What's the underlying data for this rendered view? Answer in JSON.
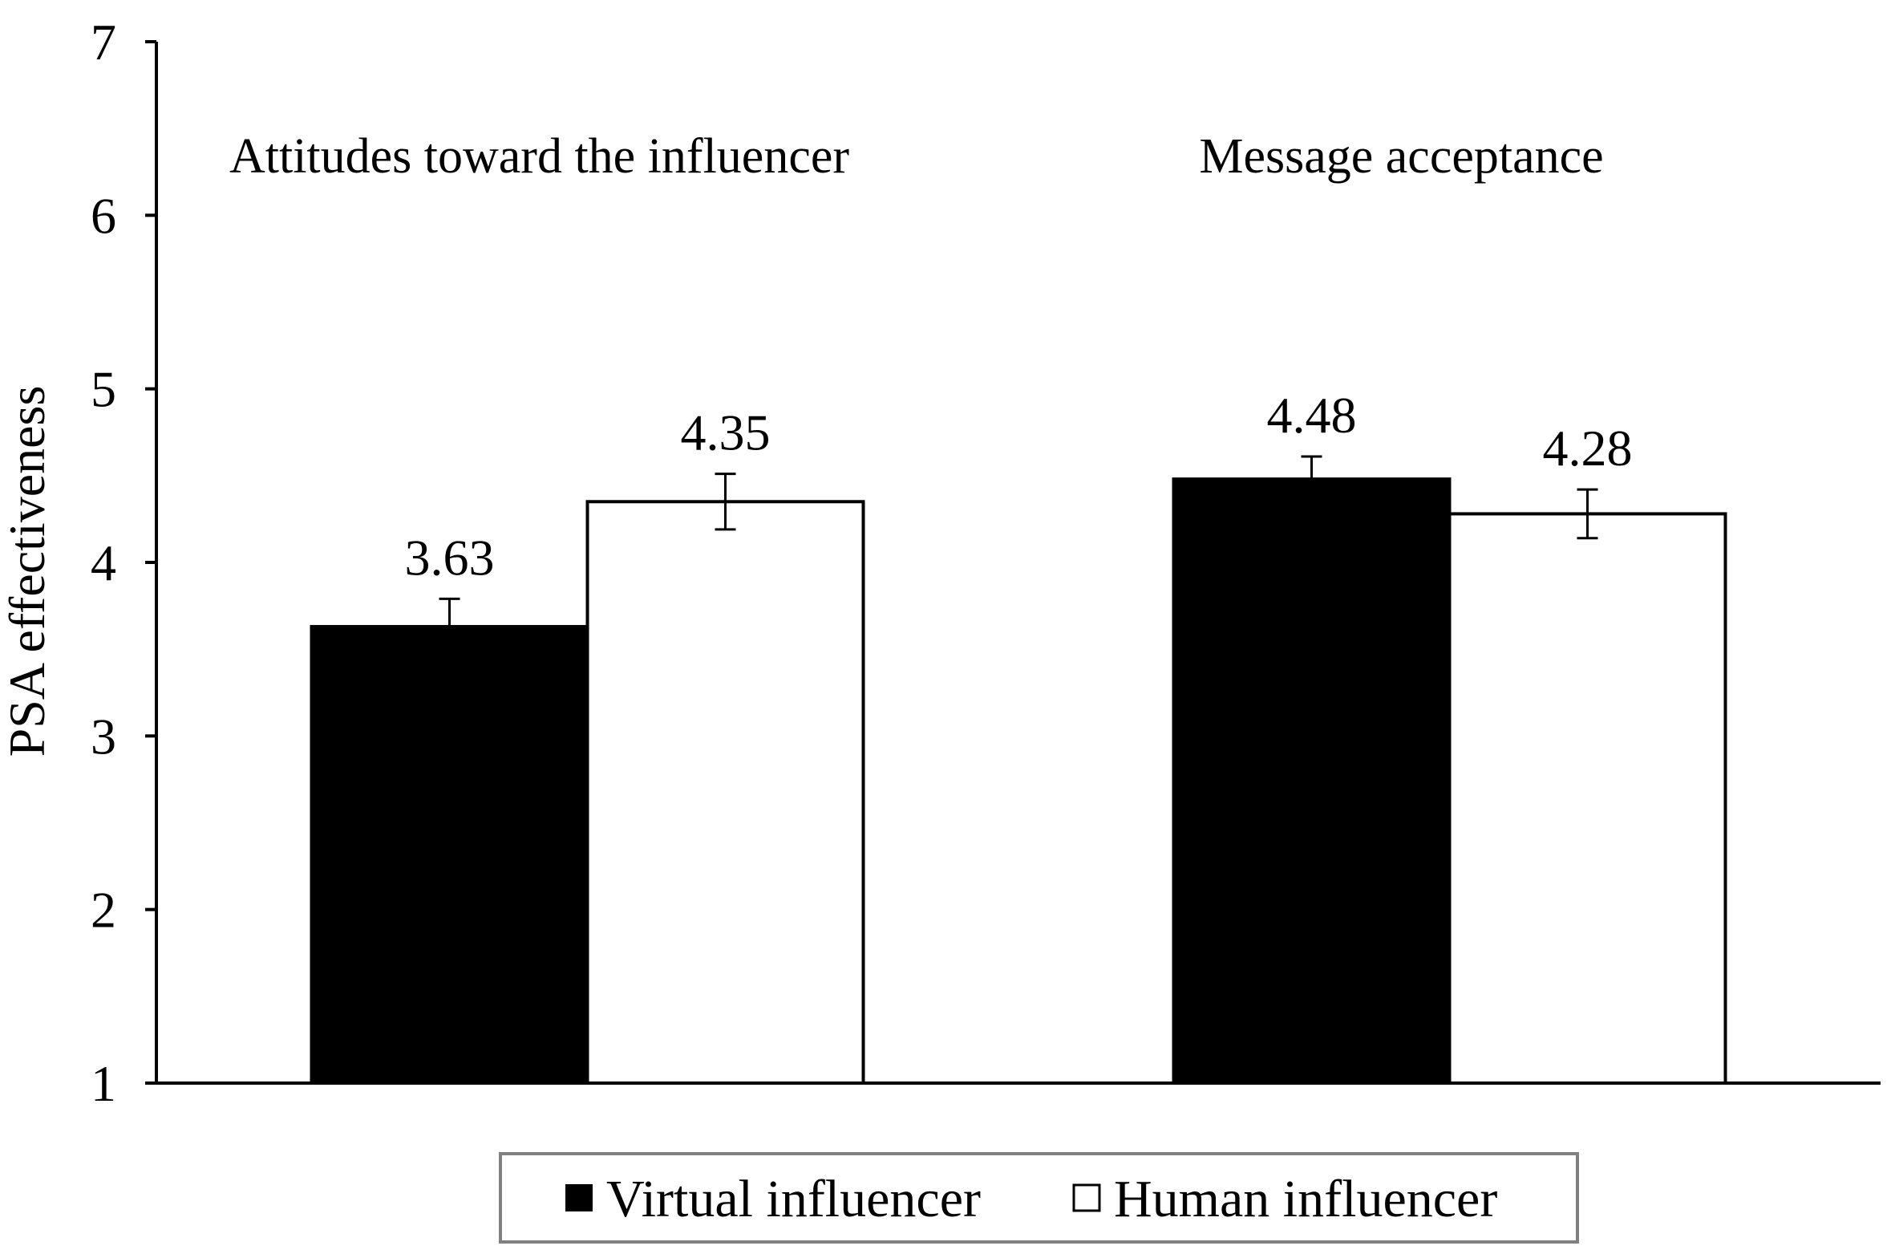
{
  "chart_data": {
    "type": "bar",
    "title": "",
    "xlabel": "",
    "ylabel": "PSA effectiveness",
    "ylim": [
      1,
      7
    ],
    "yticks": [
      1,
      2,
      3,
      4,
      5,
      6,
      7
    ],
    "grid": false,
    "legend_position": "bottom",
    "categories": [
      "Attitudes toward the influencer",
      "Message acceptance"
    ],
    "series": [
      {
        "name": "Virtual influencer",
        "color": "#000000",
        "values": [
          3.63,
          4.48
        ],
        "labels": [
          "3.63",
          "4.48"
        ],
        "error": [
          0.16,
          0.13
        ]
      },
      {
        "name": "Human influencer",
        "color": "#ffffff",
        "values": [
          4.35,
          4.28
        ],
        "labels": [
          "4.35",
          "4.28"
        ],
        "error": [
          0.16,
          0.14
        ]
      }
    ]
  }
}
